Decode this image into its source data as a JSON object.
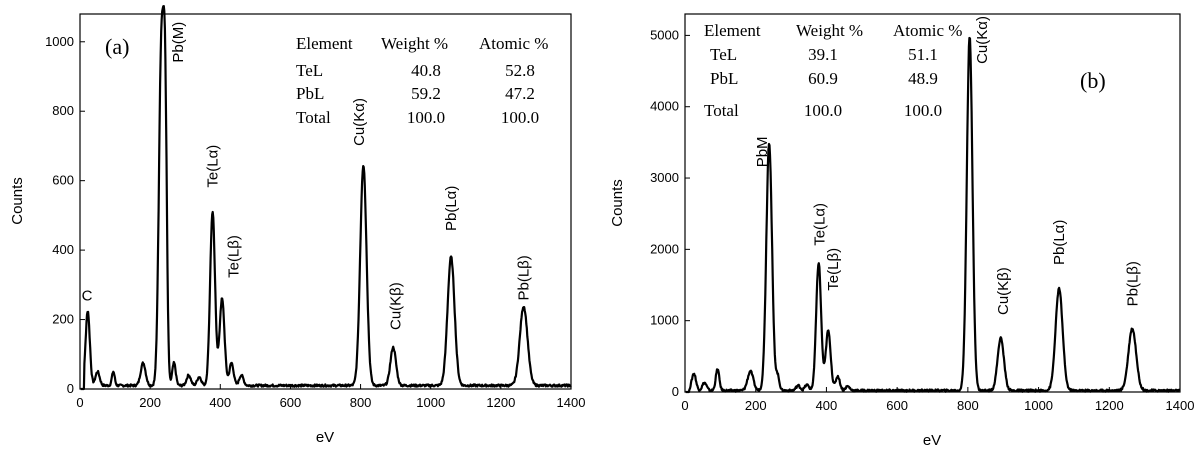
{
  "chart_data": [
    {
      "type": "line",
      "panel_label": "(a)",
      "xlabel": "eV",
      "ylabel": "Counts",
      "xlim": [
        0,
        1400
      ],
      "ylim": [
        0,
        1080
      ],
      "xticks": [
        0,
        200,
        400,
        600,
        800,
        1000,
        1200,
        1400
      ],
      "yticks": [
        0,
        200,
        400,
        600,
        800,
        1000
      ],
      "series": [
        {
          "peaks": [
            {
              "x": 22,
              "y": 215,
              "w": 6
            },
            {
              "x": 50,
              "y": 40,
              "w": 6
            },
            {
              "x": 95,
              "y": 40,
              "w": 4
            },
            {
              "x": 180,
              "y": 65,
              "w": 7
            },
            {
              "x": 232,
              "y": 975,
              "w": 7
            },
            {
              "x": 243,
              "y": 690,
              "w": 5
            },
            {
              "x": 268,
              "y": 65,
              "w": 5
            },
            {
              "x": 310,
              "y": 30,
              "w": 6
            },
            {
              "x": 340,
              "y": 25,
              "w": 6
            },
            {
              "x": 378,
              "y": 500,
              "w": 7
            },
            {
              "x": 405,
              "y": 250,
              "w": 7
            },
            {
              "x": 432,
              "y": 65,
              "w": 6
            },
            {
              "x": 460,
              "y": 30,
              "w": 6
            },
            {
              "x": 808,
              "y": 635,
              "w": 9
            },
            {
              "x": 893,
              "y": 110,
              "w": 8
            },
            {
              "x": 1058,
              "y": 370,
              "w": 10
            },
            {
              "x": 1265,
              "y": 228,
              "w": 11
            }
          ],
          "baseline": 10
        }
      ],
      "annotations": [
        {
          "text": "C",
          "x": 20,
          "y": 255,
          "rotate": false
        },
        {
          "text": "Pb(M)",
          "x": 280,
          "y": 940,
          "rotate": true
        },
        {
          "text": "Te(Lα)",
          "x": 378,
          "y": 580,
          "rotate": true
        },
        {
          "text": "Te(Lβ)",
          "x": 438,
          "y": 320,
          "rotate": true
        },
        {
          "text": "Cu(Kα)",
          "x": 796,
          "y": 700,
          "rotate": true
        },
        {
          "text": "Cu(Kβ)",
          "x": 900,
          "y": 170,
          "rotate": true
        },
        {
          "text": "Pb(Lα)",
          "x": 1058,
          "y": 455,
          "rotate": true
        },
        {
          "text": "Pb(Lβ)",
          "x": 1265,
          "y": 255,
          "rotate": true
        }
      ],
      "table": {
        "headers": [
          "Element",
          "Weight %",
          "Atomic %"
        ],
        "rows": [
          [
            "TeL",
            "40.8",
            "52.8"
          ],
          [
            "PbL",
            "59.2",
            "47.2"
          ],
          [
            "Total",
            "100.0",
            "100.0"
          ]
        ]
      }
    },
    {
      "type": "line",
      "panel_label": "(b)",
      "xlabel": "eV",
      "ylabel": "Counts",
      "xlim": [
        0,
        1400
      ],
      "ylim": [
        0,
        5300
      ],
      "xticks": [
        0,
        200,
        400,
        600,
        800,
        1000,
        1200,
        1400
      ],
      "yticks": [
        0,
        1000,
        2000,
        3000,
        4000,
        5000
      ],
      "series": [
        {
          "peaks": [
            {
              "x": 25,
              "y": 240,
              "w": 6
            },
            {
              "x": 55,
              "y": 110,
              "w": 6
            },
            {
              "x": 92,
              "y": 300,
              "w": 5
            },
            {
              "x": 185,
              "y": 270,
              "w": 8
            },
            {
              "x": 238,
              "y": 3480,
              "w": 8
            },
            {
              "x": 262,
              "y": 200,
              "w": 5
            },
            {
              "x": 320,
              "y": 70,
              "w": 6
            },
            {
              "x": 345,
              "y": 80,
              "w": 6
            },
            {
              "x": 378,
              "y": 1790,
              "w": 7
            },
            {
              "x": 405,
              "y": 840,
              "w": 7
            },
            {
              "x": 432,
              "y": 200,
              "w": 6
            },
            {
              "x": 460,
              "y": 60,
              "w": 6
            },
            {
              "x": 805,
              "y": 4960,
              "w": 8
            },
            {
              "x": 893,
              "y": 735,
              "w": 9
            },
            {
              "x": 1058,
              "y": 1430,
              "w": 10
            },
            {
              "x": 1265,
              "y": 870,
              "w": 11
            }
          ],
          "baseline": 20
        }
      ],
      "annotations": [
        {
          "text": "PbM",
          "x": 218,
          "y": 3150,
          "rotate": true
        },
        {
          "text": "Te(Lα)",
          "x": 380,
          "y": 2050,
          "rotate": true
        },
        {
          "text": "Te(Lβ)",
          "x": 418,
          "y": 1420,
          "rotate": true
        },
        {
          "text": "Cu(Kα)",
          "x": 840,
          "y": 4600,
          "rotate": true
        },
        {
          "text": "Cu(Kβ)",
          "x": 900,
          "y": 1080,
          "rotate": true
        },
        {
          "text": "Pb(Lα)",
          "x": 1058,
          "y": 1780,
          "rotate": true
        },
        {
          "text": "Pb(Lβ)",
          "x": 1265,
          "y": 1200,
          "rotate": true
        }
      ],
      "table": {
        "headers": [
          "Element",
          "Weight %",
          "Atomic %"
        ],
        "rows": [
          [
            "TeL",
            "39.1",
            "51.1"
          ],
          [
            "PbL",
            "60.9",
            "48.9"
          ],
          [
            "Total",
            "100.0",
            "100.0"
          ]
        ]
      }
    }
  ]
}
